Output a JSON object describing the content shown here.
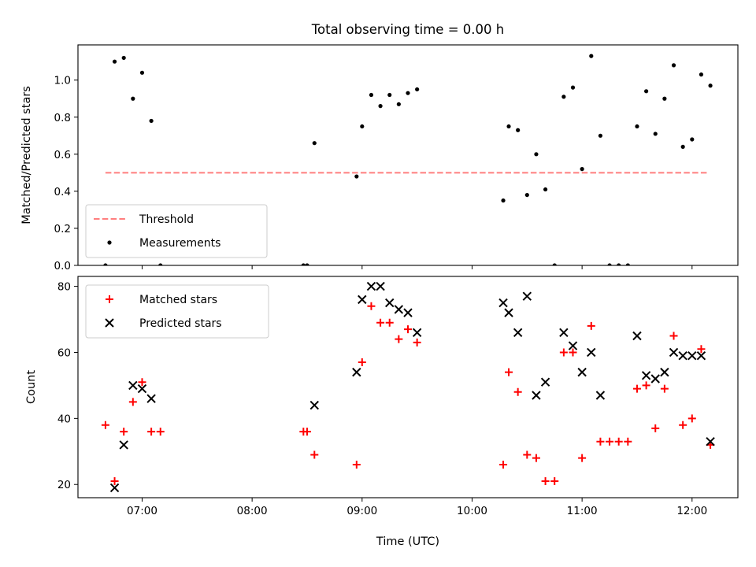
{
  "figure": {
    "title": "Total observing time = 0.00 h"
  },
  "chart_data": [
    {
      "type": "scatter",
      "ylabel": "Matched/Predicted stars",
      "xlim": [
        "06:25",
        "12:25"
      ],
      "ylim": [
        0,
        1.19
      ],
      "xticks": [
        "07:00",
        "08:00",
        "09:00",
        "10:00",
        "11:00",
        "12:00"
      ],
      "yticks": [
        "0.0",
        "0.2",
        "0.4",
        "0.6",
        "0.8",
        "1.0"
      ],
      "legend_position": "lower-left",
      "series": [
        {
          "name": "Threshold",
          "style": "dashed-line",
          "color": "#ff7f7f",
          "points": [
            [
              "06:40",
              0.5
            ],
            [
              "12:08",
              0.5
            ]
          ]
        },
        {
          "name": "Measurements",
          "style": "dot",
          "color": "#000000",
          "points": [
            [
              "06:40",
              0.0
            ],
            [
              "06:45",
              1.1
            ],
            [
              "06:50",
              1.12
            ],
            [
              "06:55",
              0.9
            ],
            [
              "07:00",
              1.04
            ],
            [
              "07:05",
              0.78
            ],
            [
              "07:10",
              0.0
            ],
            [
              "08:28",
              0.0
            ],
            [
              "08:30",
              0.0
            ],
            [
              "08:34",
              0.66
            ],
            [
              "08:57",
              0.48
            ],
            [
              "09:00",
              0.75
            ],
            [
              "09:05",
              0.92
            ],
            [
              "09:10",
              0.86
            ],
            [
              "09:15",
              0.92
            ],
            [
              "09:20",
              0.87
            ],
            [
              "09:25",
              0.93
            ],
            [
              "09:30",
              0.95
            ],
            [
              "10:17",
              0.35
            ],
            [
              "10:20",
              0.75
            ],
            [
              "10:25",
              0.73
            ],
            [
              "10:30",
              0.38
            ],
            [
              "10:35",
              0.6
            ],
            [
              "10:40",
              0.41
            ],
            [
              "10:45",
              0.0
            ],
            [
              "10:50",
              0.91
            ],
            [
              "10:55",
              0.96
            ],
            [
              "11:00",
              0.52
            ],
            [
              "11:05",
              1.13
            ],
            [
              "11:10",
              0.7
            ],
            [
              "11:15",
              0.0
            ],
            [
              "11:20",
              0.0
            ],
            [
              "11:25",
              0.0
            ],
            [
              "11:30",
              0.75
            ],
            [
              "11:35",
              0.94
            ],
            [
              "11:40",
              0.71
            ],
            [
              "11:45",
              0.9
            ],
            [
              "11:50",
              1.08
            ],
            [
              "11:55",
              0.64
            ],
            [
              "12:00",
              0.68
            ],
            [
              "12:05",
              1.03
            ],
            [
              "12:10",
              0.97
            ]
          ]
        }
      ]
    },
    {
      "type": "scatter",
      "xlabel": "Time (UTC)",
      "ylabel": "Count",
      "xlim": [
        "06:25",
        "12:25"
      ],
      "ylim": [
        16,
        83
      ],
      "xticks": [
        "07:00",
        "08:00",
        "09:00",
        "10:00",
        "11:00",
        "12:00"
      ],
      "yticks": [
        "20",
        "40",
        "60",
        "80"
      ],
      "legend_position": "upper-left",
      "series": [
        {
          "name": "Matched stars",
          "marker": "plus",
          "color": "#ff0000",
          "points": [
            [
              "06:40",
              38
            ],
            [
              "06:45",
              21
            ],
            [
              "06:50",
              36
            ],
            [
              "06:55",
              45
            ],
            [
              "07:00",
              51
            ],
            [
              "07:05",
              36
            ],
            [
              "07:10",
              36
            ],
            [
              "08:28",
              36
            ],
            [
              "08:30",
              36
            ],
            [
              "08:34",
              29
            ],
            [
              "08:57",
              26
            ],
            [
              "09:00",
              57
            ],
            [
              "09:05",
              74
            ],
            [
              "09:10",
              69
            ],
            [
              "09:15",
              69
            ],
            [
              "09:20",
              64
            ],
            [
              "09:25",
              67
            ],
            [
              "09:30",
              63
            ],
            [
              "10:17",
              26
            ],
            [
              "10:20",
              54
            ],
            [
              "10:25",
              48
            ],
            [
              "10:30",
              29
            ],
            [
              "10:35",
              28
            ],
            [
              "10:40",
              21
            ],
            [
              "10:45",
              21
            ],
            [
              "10:50",
              60
            ],
            [
              "10:55",
              60
            ],
            [
              "11:00",
              28
            ],
            [
              "11:05",
              68
            ],
            [
              "11:10",
              33
            ],
            [
              "11:15",
              33
            ],
            [
              "11:20",
              33
            ],
            [
              "11:25",
              33
            ],
            [
              "11:30",
              49
            ],
            [
              "11:35",
              50
            ],
            [
              "11:40",
              37
            ],
            [
              "11:45",
              49
            ],
            [
              "11:50",
              65
            ],
            [
              "11:55",
              38
            ],
            [
              "12:00",
              40
            ],
            [
              "12:05",
              61
            ],
            [
              "12:10",
              32
            ]
          ]
        },
        {
          "name": "Predicted stars",
          "marker": "x",
          "color": "#000000",
          "points": [
            [
              "06:45",
              19
            ],
            [
              "06:50",
              32
            ],
            [
              "06:55",
              50
            ],
            [
              "07:00",
              49
            ],
            [
              "07:05",
              46
            ],
            [
              "08:34",
              44
            ],
            [
              "08:57",
              54
            ],
            [
              "09:00",
              76
            ],
            [
              "09:05",
              80
            ],
            [
              "09:10",
              80
            ],
            [
              "09:15",
              75
            ],
            [
              "09:20",
              73
            ],
            [
              "09:25",
              72
            ],
            [
              "09:30",
              66
            ],
            [
              "10:17",
              75
            ],
            [
              "10:20",
              72
            ],
            [
              "10:25",
              66
            ],
            [
              "10:30",
              77
            ],
            [
              "10:35",
              47
            ],
            [
              "10:40",
              51
            ],
            [
              "10:50",
              66
            ],
            [
              "10:55",
              62
            ],
            [
              "11:00",
              54
            ],
            [
              "11:05",
              60
            ],
            [
              "11:10",
              47
            ],
            [
              "11:30",
              65
            ],
            [
              "11:35",
              53
            ],
            [
              "11:40",
              52
            ],
            [
              "11:45",
              54
            ],
            [
              "11:50",
              60
            ],
            [
              "11:55",
              59
            ],
            [
              "12:00",
              59
            ],
            [
              "12:05",
              59
            ],
            [
              "12:10",
              33
            ]
          ]
        }
      ]
    }
  ]
}
